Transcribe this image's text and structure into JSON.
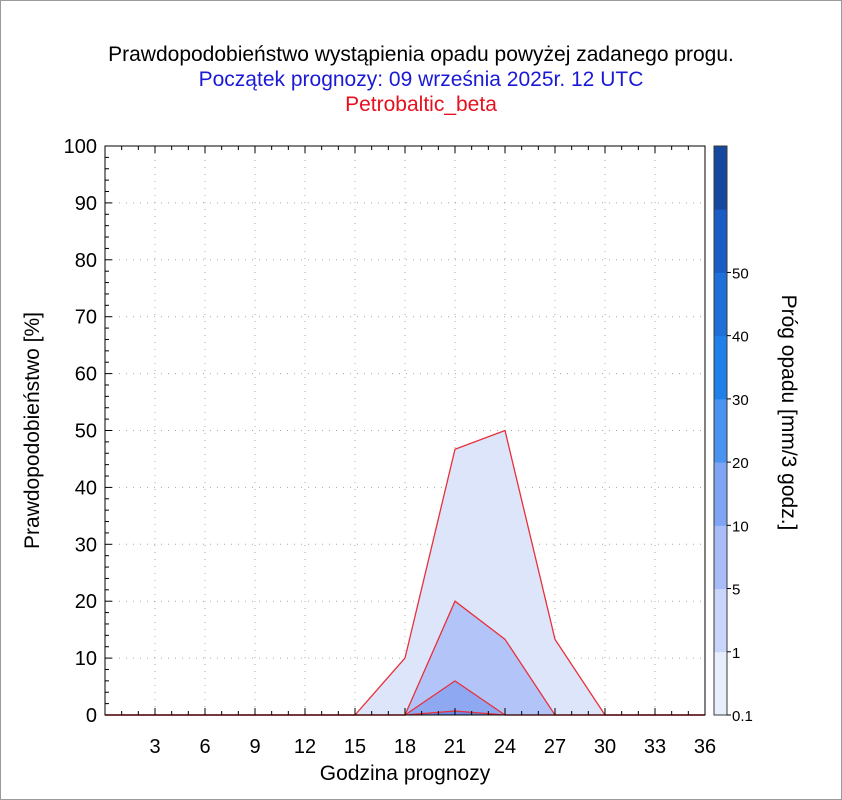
{
  "chart_data": {
    "type": "area",
    "title": "Prawdopodobieństwo wystąpienia opadu powyżej zadanego progu.",
    "subtitle": "Początek prognozy: 09 września 2025r. 12 UTC",
    "model": "Petrobaltic_beta",
    "xlabel": "Godzina prognozy",
    "ylabel": "Prawdopodobieństwo [%]",
    "xlim": [
      0,
      36
    ],
    "ylim": [
      0,
      100
    ],
    "x_ticks": [
      3,
      6,
      9,
      12,
      15,
      18,
      21,
      24,
      27,
      30,
      33,
      36
    ],
    "y_ticks": [
      0,
      10,
      20,
      30,
      40,
      50,
      60,
      70,
      80,
      90,
      100
    ],
    "grid": "dotted",
    "x": [
      0,
      3,
      6,
      9,
      12,
      15,
      18,
      21,
      24,
      27,
      30,
      33,
      36
    ],
    "series": [
      {
        "threshold": 0.1,
        "color": "#dde5fb",
        "values": [
          0,
          0,
          0,
          0,
          0,
          0,
          10,
          46.7,
          50,
          13.3,
          0,
          0,
          0
        ]
      },
      {
        "threshold": 1,
        "color": "#b3c5f8",
        "values": [
          0,
          0,
          0,
          0,
          0,
          0,
          0,
          20,
          13.3,
          0,
          0,
          0,
          0
        ]
      },
      {
        "threshold": 5,
        "color": "#8fa8f2",
        "values": [
          0,
          0,
          0,
          0,
          0,
          0,
          0,
          6,
          0,
          0,
          0,
          0,
          0
        ]
      },
      {
        "threshold": 10,
        "color": "#6e88e6",
        "values": [
          0,
          0,
          0,
          0,
          0,
          0,
          0,
          0.7,
          0,
          0,
          0,
          0,
          0
        ]
      }
    ],
    "line_color": "#e8303a",
    "colorbar": {
      "label": "Próg opadu [mm/3 godz.]",
      "levels": [
        "0.1",
        "1",
        "5",
        "10",
        "20",
        "30",
        "40",
        "50"
      ],
      "colors": [
        "#e8eefc",
        "#c8d6fb",
        "#a8bcf8",
        "#7fa4f3",
        "#4a93ee",
        "#2080ea",
        "#1e6fd8",
        "#1a5cc4",
        "#16489e"
      ]
    }
  }
}
